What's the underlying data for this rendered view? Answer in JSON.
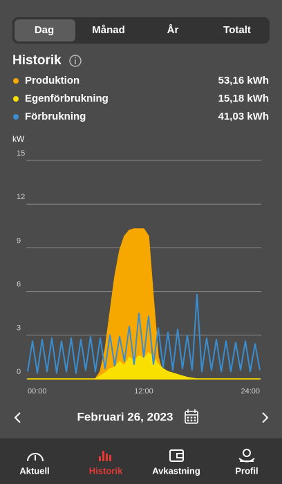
{
  "tabs": [
    "Dag",
    "Månad",
    "År",
    "Totalt"
  ],
  "header": {
    "title": "Historik"
  },
  "chart_data": {
    "type": "area",
    "ylabel": "kW",
    "x": [
      0,
      0.5,
      1,
      1.5,
      2,
      2.5,
      3,
      3.5,
      4,
      4.5,
      5,
      5.5,
      6,
      6.5,
      7,
      7.5,
      8,
      8.5,
      9,
      9.5,
      10,
      10.5,
      11,
      11.5,
      12,
      12.5,
      13,
      13.5,
      14,
      14.5,
      15,
      15.5,
      16,
      16.5,
      17,
      17.5,
      18,
      18.5,
      19,
      19.5,
      20,
      20.5,
      21,
      21.5,
      22,
      22.5,
      23,
      23.5,
      24
    ],
    "xlim": [
      0,
      24
    ],
    "xticks": [
      {
        "value": 0,
        "label": "00:00"
      },
      {
        "value": 12,
        "label": "12:00"
      },
      {
        "value": 24,
        "label": "24:00"
      }
    ],
    "ylim": [
      0,
      15
    ],
    "yticks": [
      0,
      3,
      6,
      9,
      12,
      15
    ],
    "grid": true,
    "series": [
      {
        "name": "Produktion",
        "total": "53,16 kWh",
        "color": "#f7a800",
        "style": "area",
        "values": [
          0,
          0,
          0,
          0,
          0,
          0,
          0,
          0,
          0,
          0,
          0,
          0,
          0,
          0,
          0,
          0.5,
          2,
          4.5,
          7,
          8.8,
          9.8,
          10.2,
          10.3,
          10.3,
          10.3,
          9.8,
          5.5,
          1.5,
          0.3,
          0.1,
          0,
          0,
          0,
          0,
          0,
          0,
          0,
          0,
          0,
          0,
          0,
          0,
          0,
          0,
          0,
          0,
          0,
          0,
          0
        ]
      },
      {
        "name": "Egenförbrukning",
        "total": "15,18 kWh",
        "color": "#f9e000",
        "style": "area",
        "values": [
          0,
          0,
          0,
          0,
          0,
          0,
          0,
          0,
          0,
          0,
          0,
          0,
          0,
          0,
          0,
          0.2,
          0.4,
          0.7,
          0.8,
          1.2,
          0.9,
          1.5,
          1.2,
          1.6,
          1.4,
          1.8,
          1.5,
          1.0,
          0.7,
          0.5,
          0.4,
          0.3,
          0.2,
          0.1,
          0.05,
          0,
          0,
          0,
          0,
          0,
          0,
          0,
          0,
          0,
          0,
          0,
          0,
          0,
          0
        ]
      },
      {
        "name": "Förbrukning",
        "total": "41,03 kWh",
        "color": "#3a8ed0",
        "style": "line",
        "values": [
          0.5,
          2.6,
          0.4,
          2.7,
          0.5,
          2.8,
          0.4,
          2.6,
          0.5,
          2.8,
          0.4,
          2.7,
          0.6,
          2.9,
          0.5,
          2.8,
          0.7,
          3.0,
          0.9,
          2.9,
          1.2,
          3.6,
          1.0,
          4.5,
          1.5,
          4.3,
          1.0,
          3.5,
          0.8,
          3.2,
          0.6,
          3.4,
          0.7,
          3.0,
          0.6,
          5.8,
          0.5,
          2.8,
          0.6,
          2.7,
          0.5,
          2.6,
          0.5,
          2.5,
          0.6,
          2.6,
          0.5,
          2.4,
          0.6
        ]
      }
    ]
  },
  "date_nav": {
    "label": "Februari 26, 2023"
  },
  "nav": [
    "Aktuell",
    "Historik",
    "Avkastning",
    "Profil"
  ]
}
